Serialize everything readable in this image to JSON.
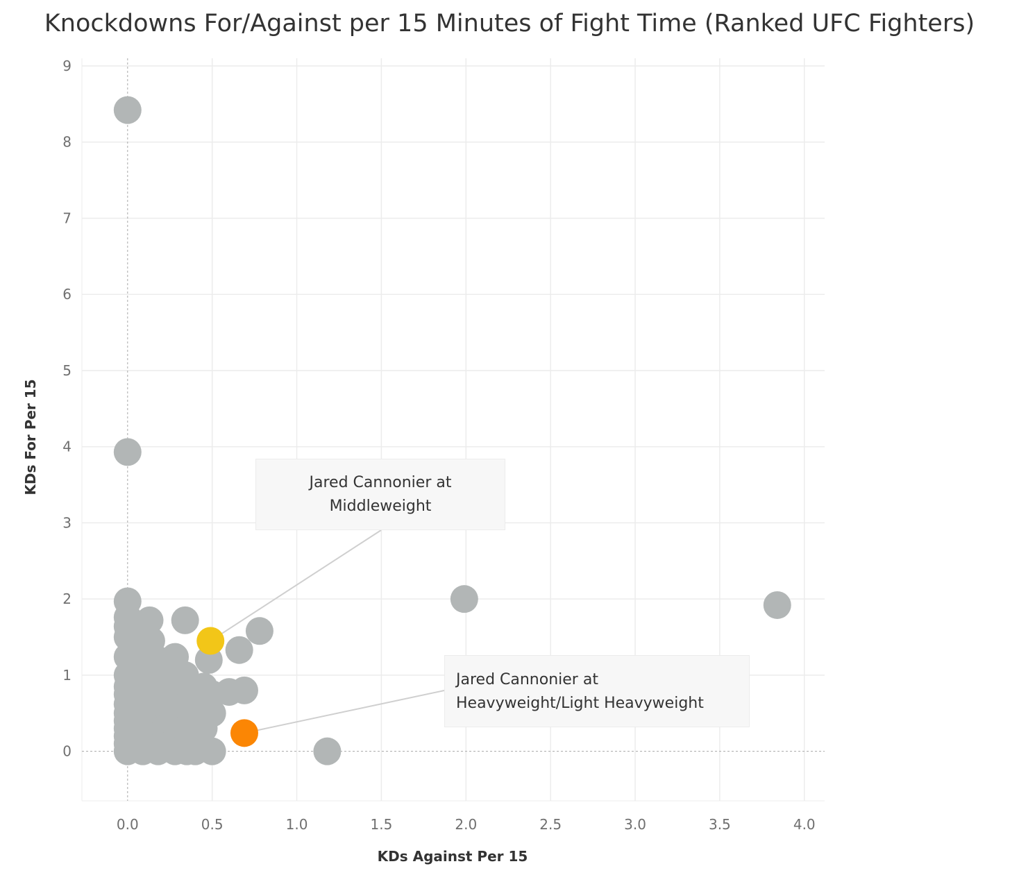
{
  "chart_data": {
    "type": "scatter",
    "title": "Knockdowns For/Against per 15 Minutes of Fight Time (Ranked UFC Fighters)",
    "xlabel": "KDs Against Per 15",
    "ylabel": "KDs For Per 15",
    "xlim": [
      -0.27,
      4.12
    ],
    "ylim": [
      -0.65,
      9.1
    ],
    "xticks": [
      "0.0",
      "0.5",
      "1.0",
      "1.5",
      "2.0",
      "2.5",
      "3.0",
      "3.5",
      "4.0"
    ],
    "yticks": [
      "0",
      "1",
      "2",
      "3",
      "4",
      "5",
      "6",
      "7",
      "8",
      "9"
    ],
    "grid": true,
    "zero_reference_lines": true,
    "colors": {
      "default": "#b2b6b6",
      "middleweight": "#f2c618",
      "heavyweight": "#fb8604",
      "grid": "#ececec",
      "reference": "#a8a8a8"
    },
    "series": [
      {
        "color": "default",
        "points": [
          [
            0.0,
            8.42
          ],
          [
            0.0,
            3.93
          ],
          [
            0.0,
            1.97
          ],
          [
            0.0,
            1.76
          ],
          [
            0.0,
            1.64
          ],
          [
            0.0,
            1.5
          ],
          [
            0.0,
            1.24
          ],
          [
            0.0,
            1.0
          ],
          [
            0.0,
            0.85
          ],
          [
            0.0,
            0.75
          ],
          [
            0.0,
            0.62
          ],
          [
            0.0,
            0.5
          ],
          [
            0.0,
            0.4
          ],
          [
            0.0,
            0.3
          ],
          [
            0.0,
            0.2
          ],
          [
            0.0,
            0.1
          ],
          [
            0.0,
            0.0
          ],
          [
            0.05,
            1.5
          ],
          [
            0.05,
            1.1
          ],
          [
            0.05,
            0.8
          ],
          [
            0.05,
            0.5
          ],
          [
            0.05,
            0.25
          ],
          [
            0.05,
            0.05
          ],
          [
            0.09,
            1.3
          ],
          [
            0.09,
            0.95
          ],
          [
            0.09,
            0.6
          ],
          [
            0.09,
            0.3
          ],
          [
            0.09,
            0.0
          ],
          [
            0.13,
            1.72
          ],
          [
            0.14,
            1.45
          ],
          [
            0.13,
            1.05
          ],
          [
            0.13,
            0.7
          ],
          [
            0.13,
            0.4
          ],
          [
            0.13,
            0.1
          ],
          [
            0.18,
            1.2
          ],
          [
            0.18,
            0.85
          ],
          [
            0.18,
            0.55
          ],
          [
            0.18,
            0.25
          ],
          [
            0.18,
            0.0
          ],
          [
            0.24,
            1.0
          ],
          [
            0.22,
            0.6
          ],
          [
            0.22,
            0.3
          ],
          [
            0.28,
            1.24
          ],
          [
            0.28,
            0.75
          ],
          [
            0.28,
            0.45
          ],
          [
            0.28,
            0.15
          ],
          [
            0.28,
            0.0
          ],
          [
            0.34,
            1.72
          ],
          [
            0.34,
            1.0
          ],
          [
            0.34,
            0.6
          ],
          [
            0.34,
            0.3
          ],
          [
            0.35,
            0.0
          ],
          [
            0.4,
            0.75
          ],
          [
            0.4,
            0.5
          ],
          [
            0.4,
            0.0
          ],
          [
            0.45,
            0.3
          ],
          [
            0.45,
            0.85
          ],
          [
            0.48,
            1.2
          ],
          [
            0.5,
            0.5
          ],
          [
            0.5,
            0.0
          ],
          [
            0.5,
            0.75
          ],
          [
            0.6,
            0.78
          ],
          [
            0.66,
            1.33
          ],
          [
            0.69,
            0.8
          ],
          [
            0.78,
            1.58
          ],
          [
            1.18,
            0.0
          ],
          [
            1.99,
            2.0
          ],
          [
            3.84,
            1.92
          ]
        ]
      },
      {
        "name": "Jared Cannonier at Middleweight",
        "color": "middleweight",
        "points": [
          [
            0.49,
            1.45
          ]
        ]
      },
      {
        "name": "Jared Cannonier at Heavyweight/Light Heavyweight",
        "color": "heavyweight",
        "points": [
          [
            0.69,
            0.24
          ]
        ]
      }
    ],
    "annotations": [
      {
        "lines": [
          "Jared Cannonier at",
          "Middleweight"
        ],
        "target": [
          0.49,
          1.45
        ]
      },
      {
        "lines": [
          "Jared Cannonier at",
          "Heavyweight/Light Heavyweight"
        ],
        "target": [
          0.69,
          0.24
        ]
      }
    ]
  }
}
